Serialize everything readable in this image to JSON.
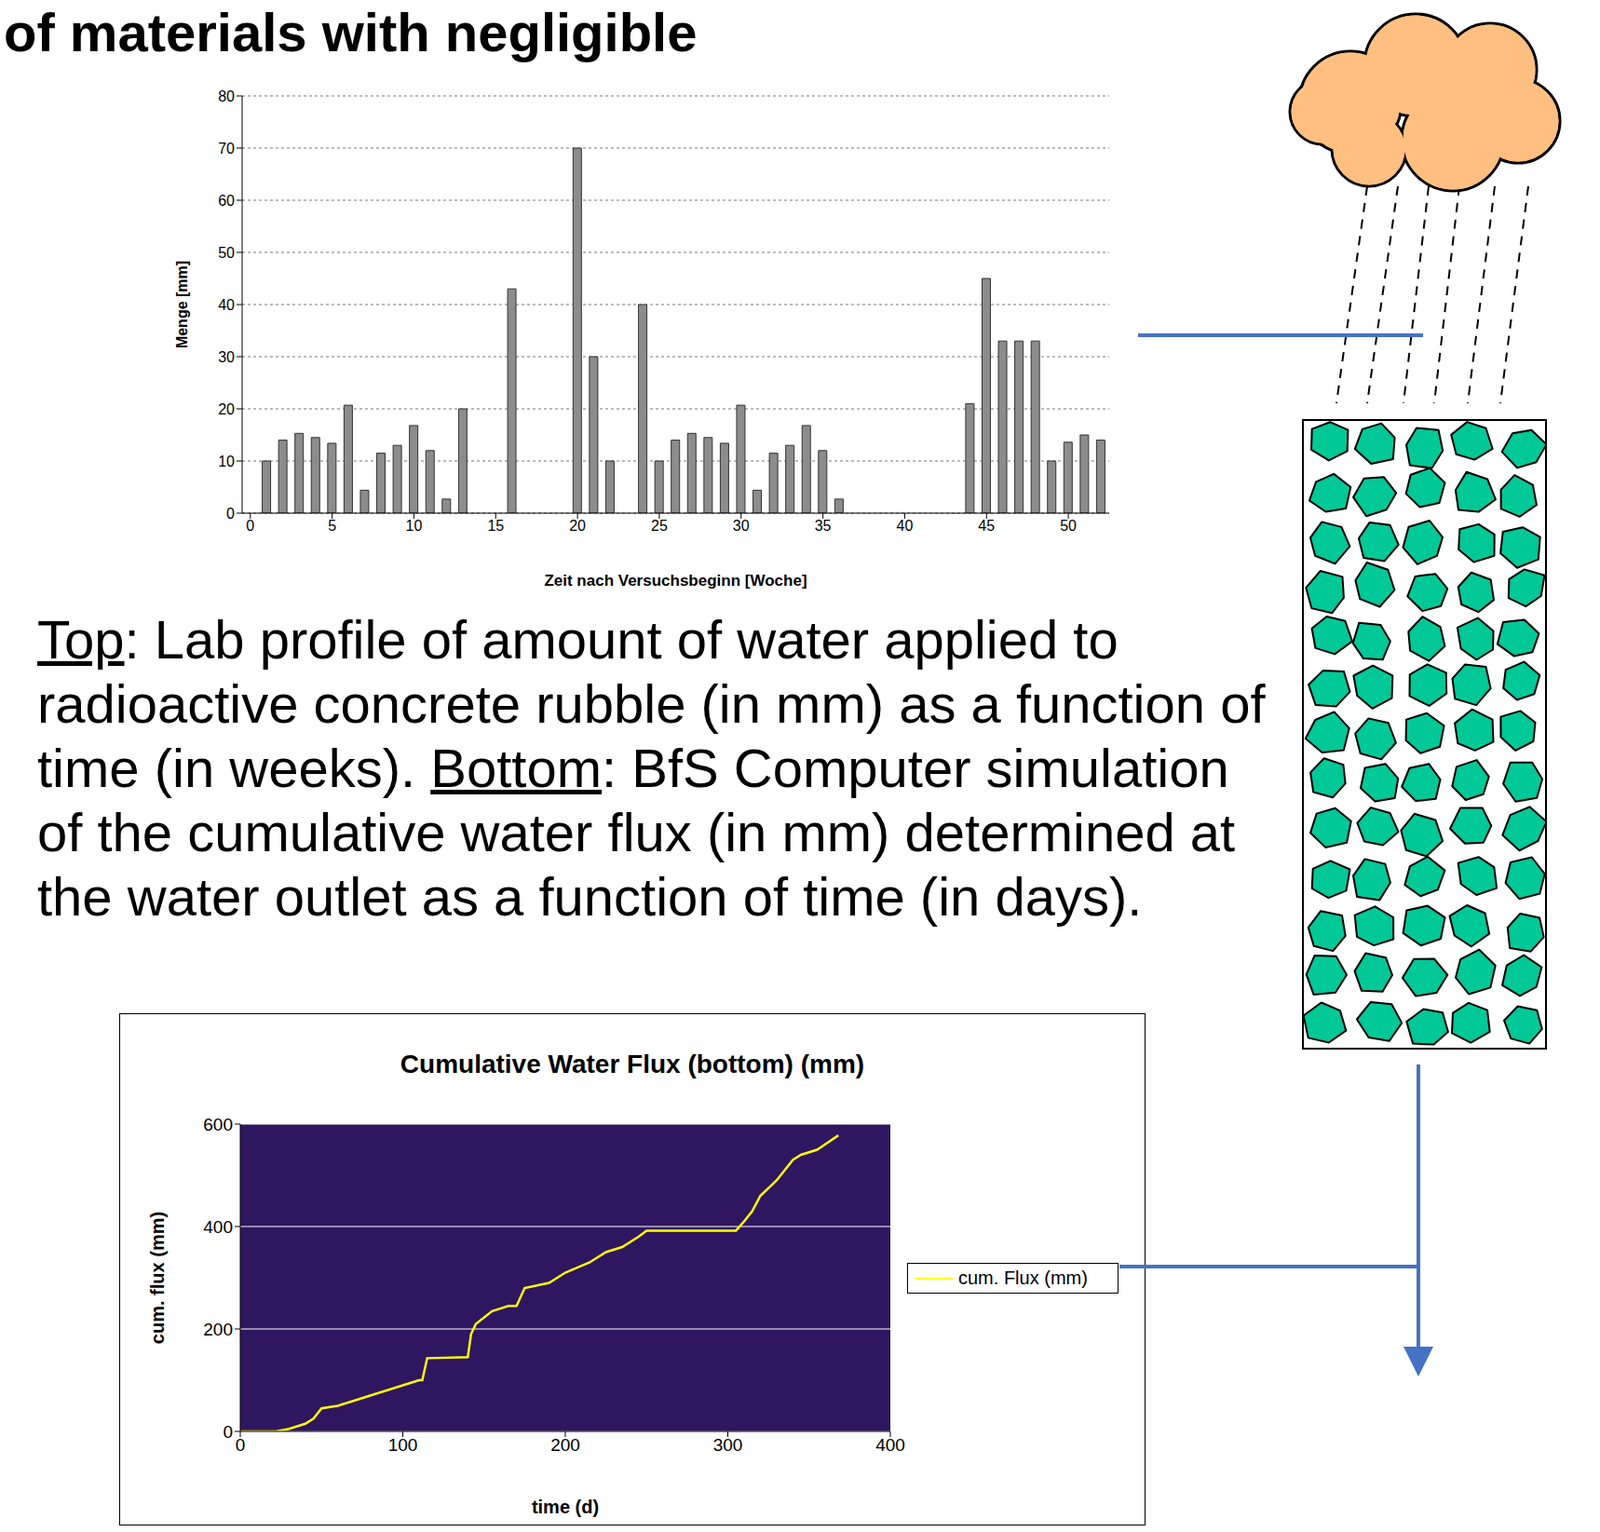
{
  "heading": "of materials with negligible",
  "caption": [
    {
      "label": "Top",
      "text": ": Lab profile of amount of water applied to radioactive concrete rubble (in mm) as a function of time (in weeks)."
    },
    {
      "label": "Bottom",
      "text": ": BfS Computer simulation of the cumulative water flux (in mm) determined at the water outlet as a function of time (in days)."
    }
  ],
  "chart_data": [
    {
      "type": "bar",
      "x_label": "Zeit nach Versuchsbeginn [Woche]",
      "y_label": "Menge [mm]",
      "x": [
        1,
        2,
        3,
        4,
        5,
        6,
        7,
        8,
        9,
        10,
        11,
        12,
        13,
        14,
        15,
        16,
        17,
        18,
        19,
        20,
        21,
        22,
        23,
        24,
        25,
        26,
        27,
        28,
        29,
        30,
        31,
        32,
        33,
        34,
        35,
        36,
        37,
        38,
        39,
        40,
        41,
        42,
        43,
        44,
        45,
        46,
        47,
        48,
        49,
        50,
        51,
        52
      ],
      "values": [
        10,
        14,
        15.3,
        14.5,
        13.4,
        20.7,
        4.4,
        11.5,
        13,
        16.8,
        12,
        2.7,
        20,
        0,
        0,
        43,
        0,
        0,
        0,
        70,
        30,
        10,
        0,
        40,
        10,
        14,
        15.3,
        14.5,
        13.4,
        20.7,
        4.4,
        11.5,
        13,
        16.8,
        12,
        2.7,
        0,
        0,
        0,
        0,
        0,
        0,
        0,
        21,
        45,
        33,
        33,
        33,
        10,
        13.6,
        15,
        14
      ],
      "color": "#8c8c8c",
      "xlim": [
        -0.5,
        52.5
      ],
      "xticks": [
        0,
        5,
        10,
        15,
        20,
        25,
        30,
        35,
        40,
        45,
        50
      ],
      "ylim": [
        0,
        80
      ],
      "yticks": [
        0,
        10,
        20,
        30,
        40,
        50,
        60,
        70,
        80
      ],
      "grid": true
    },
    {
      "type": "line",
      "title": "Cumulative Water Flux (bottom) (mm)",
      "x_label": "time (d)",
      "y_label": "cum. flux (mm)",
      "x": [
        0,
        22,
        30,
        40,
        45,
        50,
        60,
        70,
        80,
        90,
        100,
        110,
        112,
        115,
        140,
        142,
        145,
        155,
        165,
        170,
        175,
        190,
        200,
        215,
        225,
        235,
        245,
        250,
        305,
        310,
        315,
        320,
        330,
        335,
        340,
        345,
        355,
        362,
        368
      ],
      "series": [
        {
          "name": "cum. Flux (mm)",
          "color": "#ffff00",
          "values": [
            0,
            0,
            5,
            15,
            25,
            45,
            50,
            60,
            70,
            80,
            90,
            100,
            100,
            143,
            145,
            190,
            210,
            235,
            245,
            245,
            280,
            290,
            310,
            330,
            350,
            360,
            380,
            392,
            392,
            410,
            430,
            460,
            490,
            510,
            530,
            540,
            550,
            565,
            578
          ]
        }
      ],
      "xlim": [
        0,
        400
      ],
      "xticks": [
        0,
        100,
        200,
        300,
        400
      ],
      "ylim": [
        0,
        600
      ],
      "yticks": [
        0,
        200,
        400,
        600
      ],
      "grid": true,
      "legend": "right"
    }
  ]
}
